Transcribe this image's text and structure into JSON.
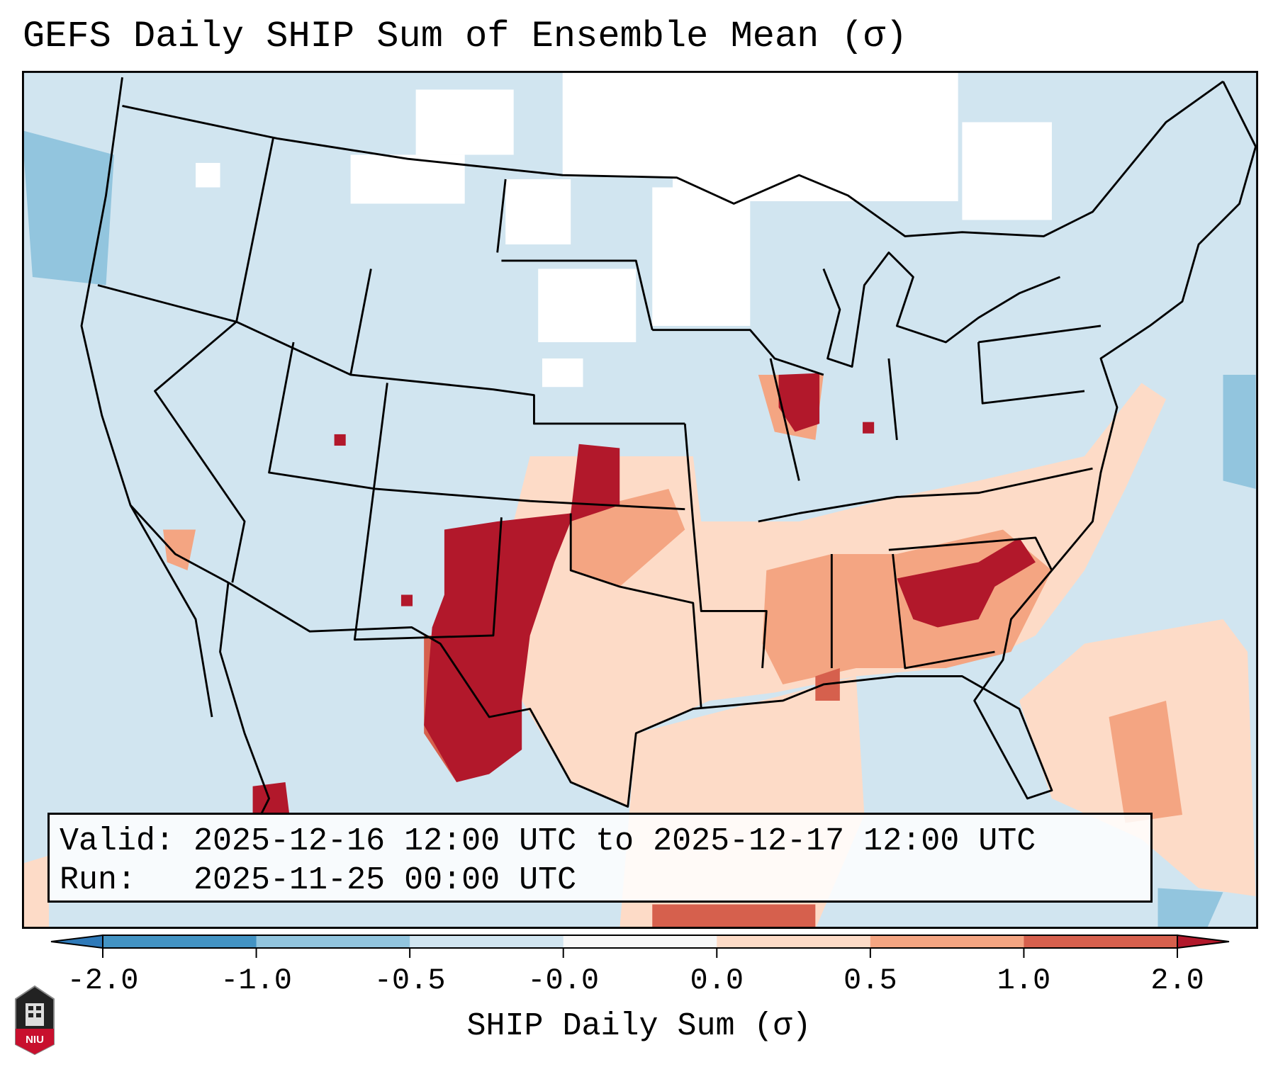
{
  "title": "GEFS Daily SHIP Sum of Ensemble Mean (σ)",
  "info": {
    "valid_line": "Valid: 2025-12-16 12:00 UTC to 2025-12-17 12:00 UTC",
    "run_line": "Run:   2025-11-25 00:00 UTC"
  },
  "logo_text": "NIU",
  "chart_data": {
    "type": "heatmap",
    "title": "GEFS Daily SHIP Sum of Ensemble Mean (σ)",
    "colorbar": {
      "label": "SHIP Daily Sum (σ)",
      "ticks": [
        "-2.0",
        "-1.0",
        "-0.5",
        "-0.0",
        "0.0",
        "0.5",
        "1.0",
        "2.0"
      ],
      "bins": [
        {
          "range": "< -2.0",
          "color": "#2f7ab9"
        },
        {
          "range": "-2.0 to -1.0",
          "color": "#4393c3"
        },
        {
          "range": "-1.0 to -0.5",
          "color": "#92c5de"
        },
        {
          "range": "-0.5 to -0.0",
          "color": "#d1e5f0"
        },
        {
          "range": "-0.0 to 0.0",
          "color": "#f7f7f7"
        },
        {
          "range": "0.0 to 0.5",
          "color": "#fddbc7"
        },
        {
          "range": "0.5 to 1.0",
          "color": "#f4a582"
        },
        {
          "range": "1.0 to 2.0",
          "color": "#d6604d"
        },
        {
          "range": "> 2.0",
          "color": "#b2182b"
        }
      ],
      "extend": "both"
    },
    "region": "Contiguous United States",
    "highlights": [
      {
        "area": "West Texas / Oklahoma panhandle / Kansas",
        "level": "> 2.0"
      },
      {
        "area": "Georgia / South Carolina",
        "level": "> 2.0"
      },
      {
        "area": "Central Illinois",
        "level": "> 2.0"
      },
      {
        "area": "Gulf Coast / Southeast / Gulf of Mexico",
        "level": "0.0 to 1.0"
      }
    ]
  }
}
